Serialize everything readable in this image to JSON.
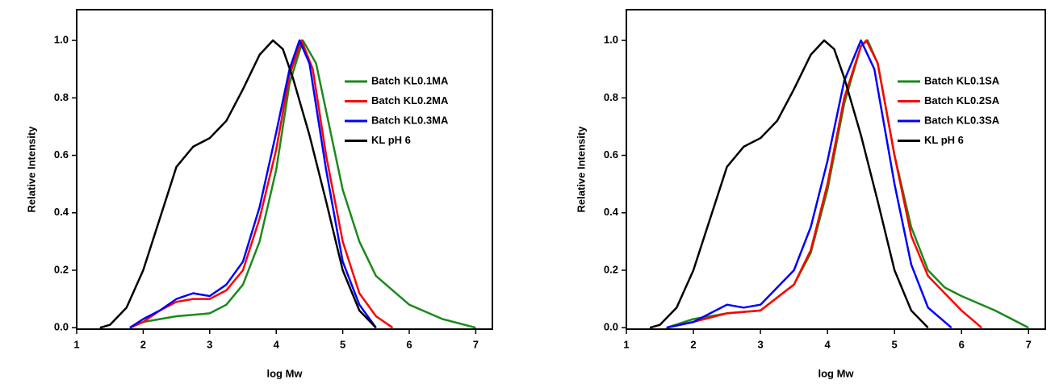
{
  "chart_data": [
    {
      "type": "line",
      "x_label": "log Mw",
      "y_label": "Relative Intensity",
      "xlim": [
        1,
        7.25
      ],
      "ylim": [
        -0.005,
        1.107
      ],
      "xticks": [
        1,
        2,
        3,
        4,
        5,
        6,
        7
      ],
      "yticks": [
        {
          "value": 0,
          "label": "0.0"
        },
        0.2,
        0.4,
        0.6,
        0.8,
        {
          "value": 1,
          "label": "1.0"
        }
      ],
      "legend": "upper right",
      "series": [
        {
          "name": "Batch KL0.1MA",
          "color": "#1a8a1a",
          "x": [
            1.8,
            2.0,
            2.5,
            3.0,
            3.25,
            3.5,
            3.75,
            4.0,
            4.2,
            4.4,
            4.6,
            4.8,
            5.0,
            5.25,
            5.5,
            6.0,
            6.5,
            7.0
          ],
          "values": [
            0,
            0.02,
            0.04,
            0.05,
            0.08,
            0.15,
            0.3,
            0.55,
            0.85,
            1.0,
            0.92,
            0.7,
            0.48,
            0.3,
            0.18,
            0.08,
            0.03,
            0
          ]
        },
        {
          "name": "Batch KL0.2MA",
          "color": "#ff0000",
          "x": [
            1.8,
            2.0,
            2.25,
            2.5,
            2.75,
            3.0,
            3.25,
            3.5,
            3.75,
            4.0,
            4.2,
            4.38,
            4.55,
            4.75,
            5.0,
            5.25,
            5.5,
            5.75
          ],
          "values": [
            0,
            0.02,
            0.06,
            0.09,
            0.1,
            0.1,
            0.13,
            0.2,
            0.38,
            0.62,
            0.88,
            1.0,
            0.9,
            0.6,
            0.3,
            0.12,
            0.04,
            0
          ]
        },
        {
          "name": "Batch KL0.3MA",
          "color": "#0000ff",
          "x": [
            1.8,
            2.0,
            2.25,
            2.5,
            2.75,
            3.0,
            3.25,
            3.5,
            3.75,
            4.0,
            4.2,
            4.35,
            4.5,
            4.75,
            5.0,
            5.25,
            5.5
          ],
          "values": [
            0,
            0.03,
            0.06,
            0.1,
            0.12,
            0.11,
            0.15,
            0.23,
            0.42,
            0.68,
            0.9,
            1.0,
            0.92,
            0.55,
            0.23,
            0.08,
            0
          ]
        },
        {
          "name": "KL pH 6",
          "color": "#000000",
          "x": [
            1.35,
            1.5,
            1.75,
            2.0,
            2.25,
            2.5,
            2.75,
            3.0,
            3.25,
            3.5,
            3.75,
            3.95,
            4.1,
            4.25,
            4.5,
            4.75,
            5.0,
            5.25,
            5.5
          ],
          "values": [
            0,
            0.01,
            0.07,
            0.2,
            0.38,
            0.56,
            0.63,
            0.66,
            0.72,
            0.83,
            0.95,
            1.0,
            0.97,
            0.87,
            0.67,
            0.44,
            0.2,
            0.06,
            0
          ]
        }
      ]
    },
    {
      "type": "line",
      "x_label": "log Mw",
      "y_label": "Relative Intensity",
      "xlim": [
        1,
        7.25
      ],
      "ylim": [
        -0.005,
        1.107
      ],
      "xticks": [
        1,
        2,
        3,
        4,
        5,
        6,
        7
      ],
      "yticks": [
        {
          "value": 0,
          "label": "0.0"
        },
        0.2,
        0.4,
        0.6,
        0.8,
        {
          "value": 1,
          "label": "1.0"
        }
      ],
      "legend": "upper right",
      "series": [
        {
          "name": "Batch KL0.1SA",
          "color": "#1a8a1a",
          "x": [
            1.6,
            2.0,
            2.5,
            3.0,
            3.5,
            3.75,
            4.0,
            4.25,
            4.5,
            4.6,
            4.75,
            5.0,
            5.25,
            5.5,
            5.75,
            6.0,
            6.5,
            7.0
          ],
          "values": [
            0,
            0.03,
            0.05,
            0.06,
            0.15,
            0.26,
            0.48,
            0.78,
            0.98,
            1.0,
            0.92,
            0.6,
            0.35,
            0.2,
            0.14,
            0.11,
            0.06,
            0
          ]
        },
        {
          "name": "Batch KL0.2SA",
          "color": "#ff0000",
          "x": [
            1.6,
            2.0,
            2.5,
            3.0,
            3.5,
            3.75,
            4.0,
            4.25,
            4.5,
            4.58,
            4.75,
            5.0,
            5.25,
            5.5,
            5.75,
            6.0,
            6.3
          ],
          "values": [
            0,
            0.02,
            0.05,
            0.06,
            0.15,
            0.27,
            0.5,
            0.8,
            0.98,
            1.0,
            0.92,
            0.6,
            0.32,
            0.18,
            0.12,
            0.06,
            0
          ]
        },
        {
          "name": "Batch KL0.3SA",
          "color": "#0000ff",
          "x": [
            1.6,
            2.0,
            2.5,
            2.75,
            3.0,
            3.5,
            3.75,
            4.0,
            4.25,
            4.5,
            4.7,
            5.0,
            5.25,
            5.5,
            5.75,
            5.85
          ],
          "values": [
            0,
            0.02,
            0.08,
            0.07,
            0.08,
            0.2,
            0.35,
            0.58,
            0.86,
            1.0,
            0.9,
            0.5,
            0.22,
            0.07,
            0.02,
            0
          ]
        },
        {
          "name": "KL pH 6",
          "color": "#000000",
          "x": [
            1.35,
            1.5,
            1.75,
            2.0,
            2.25,
            2.5,
            2.75,
            3.0,
            3.25,
            3.5,
            3.75,
            3.95,
            4.1,
            4.25,
            4.5,
            4.75,
            5.0,
            5.25,
            5.5
          ],
          "values": [
            0,
            0.01,
            0.07,
            0.2,
            0.38,
            0.56,
            0.63,
            0.66,
            0.72,
            0.83,
            0.95,
            1.0,
            0.97,
            0.87,
            0.67,
            0.44,
            0.2,
            0.06,
            0
          ]
        }
      ]
    }
  ]
}
